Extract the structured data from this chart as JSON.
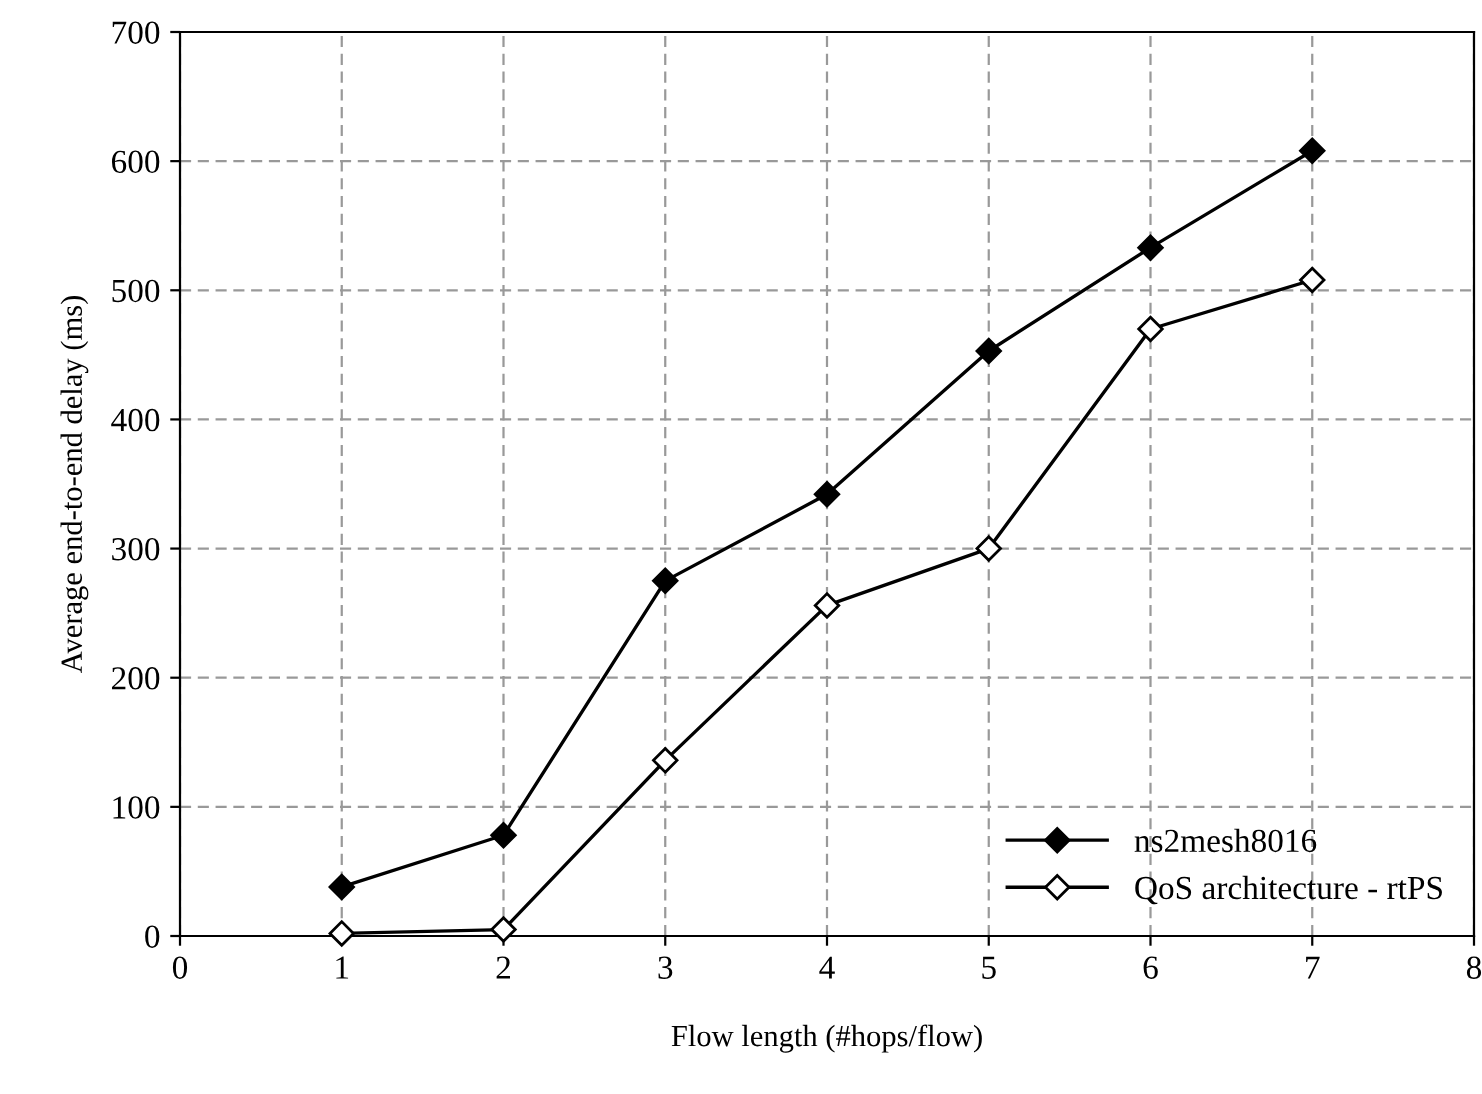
{
  "chart_data": {
    "type": "line",
    "xlabel": "Flow length (#hops/flow)",
    "ylabel": "Average end-to-end delay (ms)",
    "x": [
      1,
      2,
      3,
      4,
      5,
      6,
      7
    ],
    "series": [
      {
        "name": "ns2mesh8016",
        "color": "#000000",
        "values": [
          38,
          78,
          275,
          342,
          453,
          533,
          608
        ]
      },
      {
        "name": "QoS architecture - rtPS",
        "color": "#000000",
        "values": [
          2,
          5,
          136,
          256,
          300,
          470,
          508
        ]
      }
    ],
    "xlim": [
      0,
      8
    ],
    "xticks": [
      0,
      1,
      2,
      3,
      4,
      5,
      6,
      7,
      8
    ],
    "ylim": [
      0,
      700
    ],
    "yticks": [
      0,
      100,
      200,
      300,
      400,
      500,
      600,
      700
    ],
    "grid": true,
    "legend": "bottom right",
    "marker": "diamond",
    "line_style": "solid"
  }
}
